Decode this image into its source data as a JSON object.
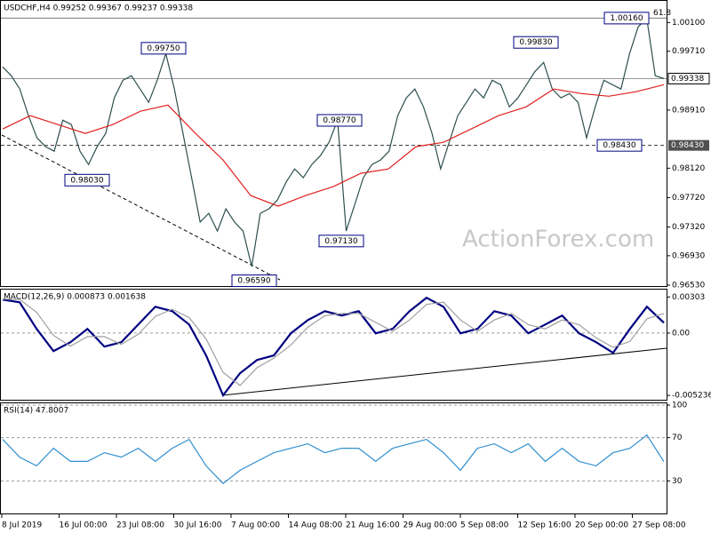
{
  "chart_data": [
    {
      "type": "line",
      "title": "USDCHF,H4  0.99252 0.99367 0.99237 0.99338",
      "watermark": "ActionForex.com",
      "series": [
        {
          "color": "#2f4f4f",
          "values": [
            0.99497,
            0.99376,
            0.99196,
            0.98834,
            0.98532,
            0.98412,
            0.98351,
            0.98773,
            0.98713,
            0.98351,
            0.9817,
            0.98412,
            0.98593,
            0.99075,
            0.99316,
            0.99376,
            0.99196,
            0.99015,
            0.99316,
            0.99678,
            0.99196,
            0.98593,
            0.9799,
            0.97387,
            0.97507,
            0.97266,
            0.97567,
            0.97387,
            0.97266,
            0.96784,
            0.97507,
            0.97567,
            0.97688,
            0.97929,
            0.9811,
            0.9799,
            0.9817,
            0.98291,
            0.98472,
            0.98773,
            0.97266,
            0.97628,
            0.9799,
            0.9817,
            0.98231,
            0.98351,
            0.98834,
            0.99075,
            0.99196,
            0.98954,
            0.98593,
            0.9811,
            0.98472,
            0.98834,
            0.99015,
            0.99196,
            0.99075,
            0.99316,
            0.99256,
            0.98954,
            0.99075,
            0.99256,
            0.99437,
            0.99557,
            0.99196,
            0.99075,
            0.99135,
            0.99015,
            0.98532,
            0.98954,
            0.99316,
            0.99256,
            0.99196,
            0.99678,
            1.0004,
            1.0016,
            0.99376,
            0.99338
          ]
        },
        {
          "color": "#e02020",
          "values": [
            0.98653,
            0.98834,
            0.98713,
            0.98593,
            0.98713,
            0.98894,
            0.98978,
            0.98593,
            0.98231,
            0.97748,
            0.97604,
            0.97748,
            0.97869,
            0.9805,
            0.9811,
            0.98412,
            0.98472,
            0.98653,
            0.98834,
            0.98954,
            0.99196,
            0.99135,
            0.99099,
            0.9916,
            0.99256
          ]
        }
      ],
      "ylim": [
        0.9653,
        1.0037
      ],
      "yticks": [
        {
          "value": 1.001,
          "label": "1.00100"
        },
        {
          "value": 0.9971,
          "label": "0.99710"
        },
        {
          "value": 0.9891,
          "label": "0.98910"
        },
        {
          "value": 0.9812,
          "label": "0.98120"
        },
        {
          "value": 0.9772,
          "label": "0.97720"
        },
        {
          "value": 0.9732,
          "label": "0.97320"
        },
        {
          "value": 0.9693,
          "label": "0.96930"
        },
        {
          "value": 0.9653,
          "label": "0.96530"
        }
      ],
      "grid": false,
      "annotations": [
        {
          "value": 0.9975,
          "label": "0.99750"
        },
        {
          "value": 0.9803,
          "label": "0.98030"
        },
        {
          "value": 0.9659,
          "label": "0.96590"
        },
        {
          "value": 0.9877,
          "label": "0.98770"
        },
        {
          "value": 0.9713,
          "label": "0.97130"
        },
        {
          "value": 0.9983,
          "label": "0.99830"
        },
        {
          "value": 0.9843,
          "label": "0.98430"
        },
        {
          "value": 1.0016,
          "label": "1.00160"
        }
      ],
      "fib_label": "61.8",
      "current_price": {
        "value": 0.99338,
        "label": "0.99338"
      },
      "level": {
        "value": 0.9843,
        "label": "0.98430"
      }
    },
    {
      "type": "line",
      "title": "MACD(12,26,9) 0.000873 0.001638",
      "series": [
        {
          "color": "#000080",
          "values": [
            0.00281,
            0.00258,
            0.00035,
            -0.00151,
            -0.00077,
            0.00035,
            -0.00114,
            -0.00077,
            0.00072,
            0.00221,
            0.00184,
            0.00072,
            -0.00188,
            -0.00523,
            -0.00337,
            -0.00226,
            -0.00188,
            -2e-05,
            0.00109,
            0.00184,
            0.00147,
            0.00184,
            -2e-05,
            0.00035,
            0.00184,
            0.00296,
            0.00221,
            -2e-05,
            0.00035,
            0.00184,
            0.00147,
            -2e-05,
            0.00072,
            0.00147,
            -2e-05,
            -0.00077,
            -0.00166,
            0.00035,
            0.00221,
            0.00087
          ]
        },
        {
          "color": "#a0a0a0",
          "values": [
            0.00285,
            0.00283,
            0.00175,
            -0.0002,
            -0.0011,
            -0.0003,
            -0.0003,
            -0.00095,
            -0.0001,
            0.0014,
            0.002,
            0.0013,
            -0.0005,
            -0.0033,
            -0.0044,
            -0.0029,
            -0.0021,
            -0.001,
            0.0005,
            0.00145,
            0.00165,
            0.00165,
            0.0009,
            0.00015,
            0.0011,
            0.0024,
            0.0026,
            0.0011,
            0.00015,
            0.0011,
            0.00165,
            0.0007,
            0.00035,
            0.0011,
            0.0007,
            -0.0004,
            -0.0012,
            -0.0007,
            0.0012,
            0.00164
          ]
        }
      ],
      "ylim": [
        -0.0056,
        0.0035
      ],
      "yticks": [
        {
          "value": 0.00303,
          "label": "0.00303"
        },
        {
          "value": 0,
          "label": "0.00"
        },
        {
          "value": -0.005236,
          "label": "-0.005236"
        }
      ],
      "grid": false
    },
    {
      "type": "line",
      "title": "RSI(14) 47.8007",
      "series": [
        {
          "color": "#2f8fd0",
          "values": [
            68.4,
            52.0,
            43.9,
            60.2,
            48.0,
            48.0,
            56.1,
            52.0,
            60.2,
            48.0,
            60.2,
            68.4,
            43.9,
            27.6,
            39.8,
            48.0,
            56.1,
            60.2,
            64.3,
            56.1,
            60.2,
            60.2,
            48.0,
            60.2,
            64.3,
            68.4,
            56.1,
            39.8,
            60.2,
            64.3,
            56.1,
            64.3,
            48.0,
            60.2,
            48.0,
            43.9,
            56.1,
            60.2,
            72.4,
            47.8
          ]
        }
      ],
      "ylim": [
        0,
        100
      ],
      "yticks": [
        100,
        70,
        30
      ],
      "grid": true,
      "xtick_labels": [
        "8 Jul 2019",
        "16 Jul 00:00",
        "23 Jul 08:00",
        "30 Jul 16:00",
        "7 Aug 00:00",
        "14 Aug 08:00",
        "21 Aug 16:00",
        "29 Aug 00:00",
        "5 Sep 08:00",
        "12 Sep 16:00",
        "20 Sep 00:00",
        "27 Sep 08:00"
      ]
    }
  ]
}
